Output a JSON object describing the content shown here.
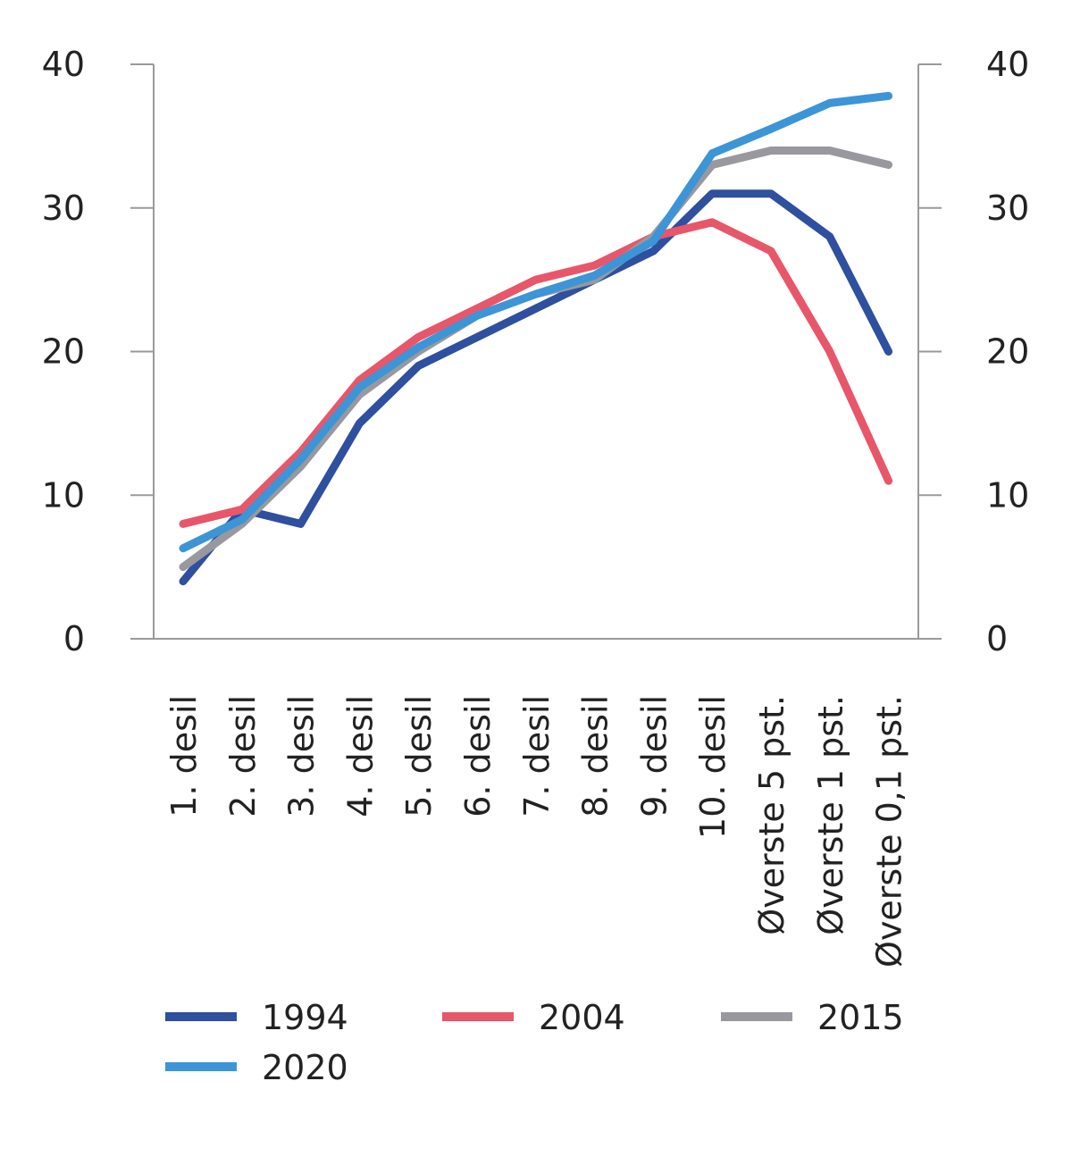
{
  "chart_data": {
    "type": "line",
    "title": "",
    "xlabel": "",
    "ylabel": "",
    "categories": [
      "1. desil",
      "2. desil",
      "3. desil",
      "4. desil",
      "5. desil",
      "6. desil",
      "7. desil",
      "8. desil",
      "9. desil",
      "10. desil",
      "Øverste 5 pst.",
      "Øverste 1 pst.",
      "Øverste 0,1 pst."
    ],
    "ylim": [
      0,
      40
    ],
    "yticks": [
      0,
      10,
      20,
      30,
      40
    ],
    "y_axis_left": true,
    "y_axis_right": true,
    "grid": false,
    "legend_position": "bottom",
    "series": [
      {
        "name": "1994",
        "color": "#2f4f9f",
        "values": [
          4,
          9,
          8,
          15,
          19,
          21,
          23,
          25,
          27,
          31,
          31,
          28,
          20
        ]
      },
      {
        "name": "2004",
        "color": "#e8566a",
        "values": [
          8,
          9,
          13,
          18,
          21,
          23,
          25,
          26,
          28,
          29,
          27,
          20,
          11
        ]
      },
      {
        "name": "2015",
        "color": "#98989e",
        "values": [
          5,
          8,
          12,
          17,
          20,
          22.5,
          24,
          25,
          28,
          33,
          34,
          34,
          33
        ]
      },
      {
        "name": "2020",
        "color": "#3c95d6",
        "values": [
          6.3,
          8.3,
          12.5,
          17.5,
          20.3,
          22.5,
          24,
          25.3,
          27.7,
          33.8,
          35.5,
          37.3,
          37.8
        ]
      }
    ]
  }
}
